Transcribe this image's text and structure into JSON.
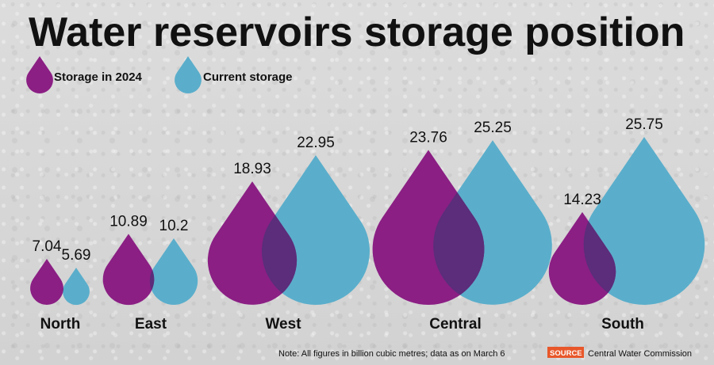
{
  "colors": {
    "storage_2024": "#8b1f84",
    "current": "#5aaecb",
    "overlap": "#5b2d7a",
    "source_badge": "#e8572a"
  },
  "chart_data": {
    "type": "bar",
    "title": "Water reservoirs storage position",
    "categories": [
      "North",
      "East",
      "West",
      "Central",
      "South"
    ],
    "series": [
      {
        "name": "Storage in 2024",
        "values": [
          7.04,
          10.89,
          18.93,
          23.76,
          14.23
        ]
      },
      {
        "name": "Current storage",
        "values": [
          5.69,
          10.2,
          22.95,
          25.25,
          25.75
        ]
      }
    ],
    "value_labels": [
      [
        "7.04",
        "10.89",
        "18.93",
        "23.76",
        "14.23"
      ],
      [
        "5.69",
        "10.2",
        "22.95",
        "25.25",
        "25.75"
      ]
    ],
    "note": "Note: All figures in billion cubic metres; data as on March 6",
    "source_label": "SOURCE",
    "source": "Central Water Commission"
  }
}
